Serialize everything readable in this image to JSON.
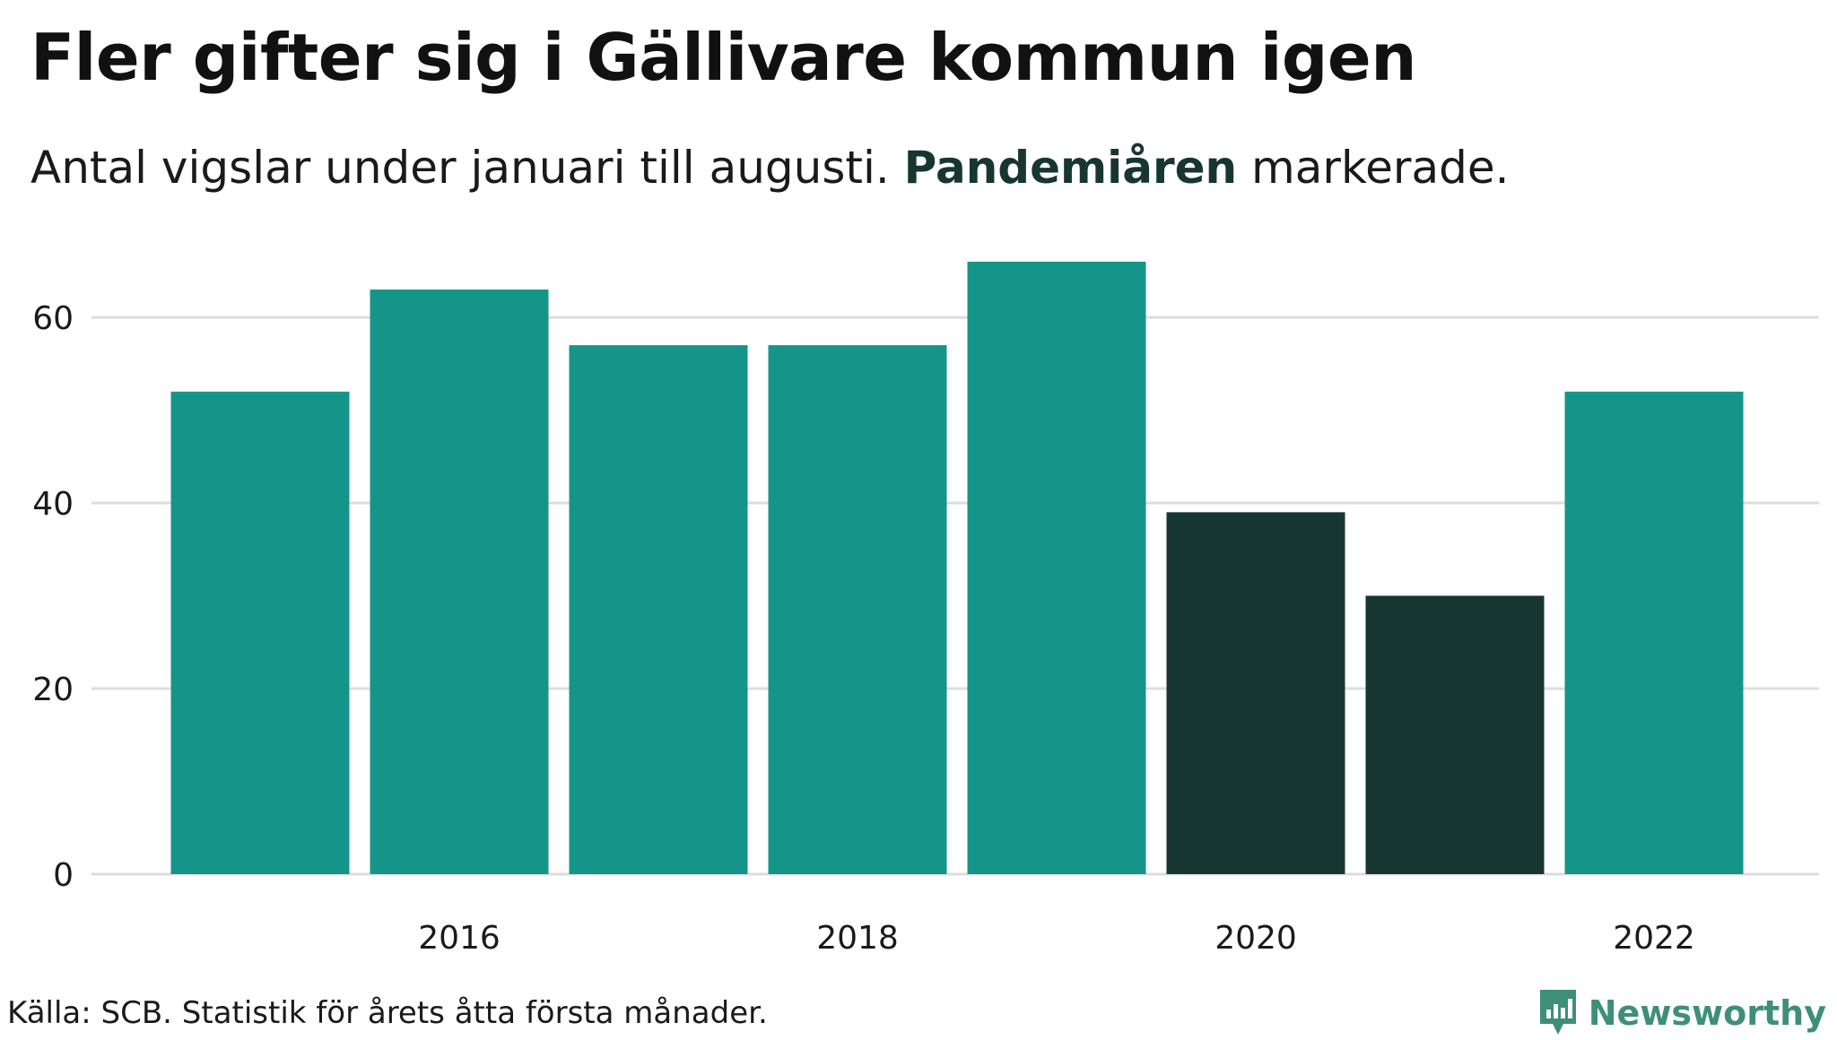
{
  "title": "Fler gifter sig i Gällivare kommun igen",
  "subtitle": {
    "before": "Antal vigslar under januari till augusti. ",
    "highlight": "Pandemiåren",
    "after": " markerade."
  },
  "caption": "Källa: SCB. Statistik för årets åtta första månader.",
  "brand": {
    "name": "Newsworthy",
    "icon": "newsworthy-logo-icon",
    "color": "#3e8f76"
  },
  "colors": {
    "normal": "#15958a",
    "highlight": "#183631",
    "grid": "#dddddd",
    "text": "#1a1a1a"
  },
  "chart_data": {
    "type": "bar",
    "categories": [
      "2015",
      "2016",
      "2017",
      "2018",
      "2019",
      "2020",
      "2021",
      "2022"
    ],
    "values": [
      52,
      63,
      57,
      57,
      66,
      39,
      30,
      52
    ],
    "highlighted": [
      "2020",
      "2021"
    ],
    "x_tick_labels": [
      "2016",
      "2018",
      "2020",
      "2022"
    ],
    "y_ticks": [
      0,
      20,
      40,
      60
    ],
    "ylim": [
      0,
      66
    ],
    "grid": true,
    "xlabel": "",
    "ylabel": ""
  }
}
